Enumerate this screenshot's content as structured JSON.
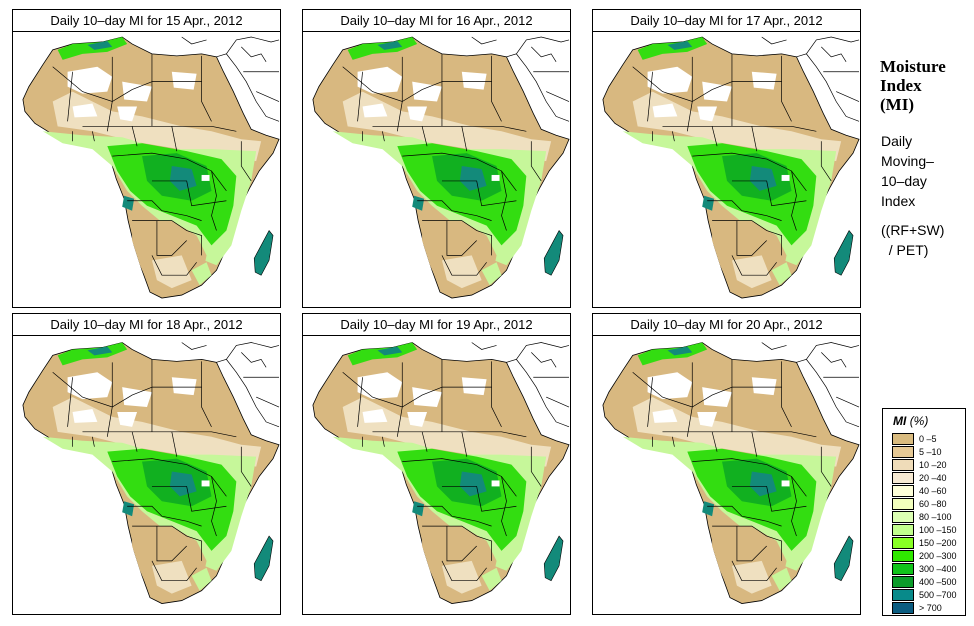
{
  "panels": [
    {
      "title": "Daily 10–day MI for  15 Apr., 2012"
    },
    {
      "title": "Daily 10–day MI for  16 Apr., 2012"
    },
    {
      "title": "Daily 10–day MI for  17 Apr., 2012"
    },
    {
      "title": "Daily 10–day MI for  18 Apr., 2012"
    },
    {
      "title": "Daily 10–day MI for  19 Apr., 2012"
    },
    {
      "title": "Daily 10–day MI for  20 Apr., 2012"
    }
  ],
  "side": {
    "title_lines": [
      "Moisture",
      "Index",
      "(MI)"
    ],
    "desc_lines": [
      "Daily",
      "Moving–",
      "10–day",
      "Index"
    ],
    "formula_lines": [
      "((RF+SW)",
      "  / PET)"
    ]
  },
  "legend": {
    "title": "MI",
    "unit": "(%)",
    "items": [
      {
        "label": "0 –5",
        "color": "#d9bb7f"
      },
      {
        "label": "5 –10",
        "color": "#e6c995"
      },
      {
        "label": "10 –20",
        "color": "#efdcb9"
      },
      {
        "label": "20 –40",
        "color": "#f7ead3"
      },
      {
        "label": "40 –60",
        "color": "#feffd9"
      },
      {
        "label": "60 –80",
        "color": "#f2ffbd"
      },
      {
        "label": "80 –100",
        "color": "#dcffb3"
      },
      {
        "label": "100 –150",
        "color": "#c2ff8e"
      },
      {
        "label": "150 –200",
        "color": "#88ff24"
      },
      {
        "label": "200 –300",
        "color": "#2fe800"
      },
      {
        "label": "300 –400",
        "color": "#10c31a"
      },
      {
        "label": "400 –500",
        "color": "#0b9c2a"
      },
      {
        "label": "500 –700",
        "color": "#088a8a"
      },
      {
        "label": "> 700",
        "color": "#0b5c80"
      }
    ]
  },
  "map_colors": {
    "desert": "#d8b880",
    "dry_light": "#efe0c0",
    "bare": "#ffffff",
    "green_light": "#c6f79a",
    "green": "#33dd11",
    "green_dark": "#11b020",
    "wet": "#138a7a",
    "very_wet": "#0d6480",
    "border": "#000000"
  }
}
